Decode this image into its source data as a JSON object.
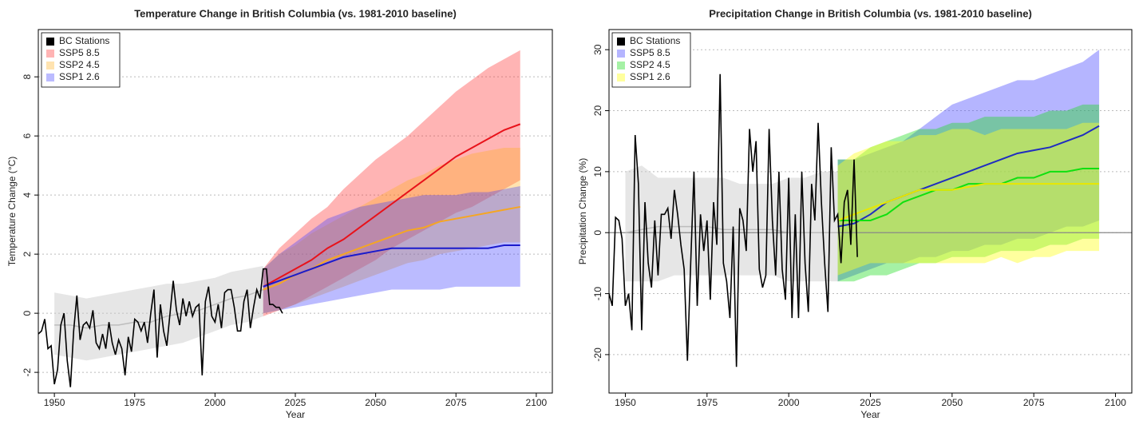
{
  "chart_data": [
    {
      "type": "line",
      "title": "Temperature Change in British Columbia (vs. 1981-2010 baseline)",
      "x_label": "Year",
      "y_label": "Temperature Change (°C)",
      "xlim": [
        1945,
        2105
      ],
      "xticks": [
        1950,
        1975,
        2000,
        2025,
        2050,
        2075,
        2100
      ],
      "ylim": [
        -2.7,
        9.6
      ],
      "yticks": [
        -2,
        0,
        2,
        4,
        6,
        8
      ],
      "grid": true,
      "legend": "top-left",
      "historical_range": {
        "color": "#bdbdbd",
        "x": [
          1950,
          1955,
          1960,
          1965,
          1970,
          1975,
          1980,
          1985,
          1990,
          1995,
          2000,
          2005,
          2010,
          2015
        ],
        "values": [
          -0.4,
          -0.4,
          -0.5,
          -0.4,
          -0.4,
          -0.3,
          -0.3,
          -0.1,
          0.0,
          0.1,
          0.3,
          0.5,
          0.6,
          0.8
        ],
        "lower": [
          -1.4,
          -1.5,
          -1.6,
          -1.5,
          -1.4,
          -1.3,
          -1.2,
          -1.1,
          -1.0,
          -0.8,
          -0.6,
          -0.4,
          -0.3,
          -0.1
        ],
        "upper": [
          0.7,
          0.6,
          0.5,
          0.6,
          0.7,
          0.8,
          0.9,
          1.0,
          1.0,
          1.1,
          1.2,
          1.4,
          1.5,
          1.6
        ]
      },
      "series": [
        {
          "name": "BC Stations",
          "color": "#000000",
          "x": [
            1945,
            1946,
            1947,
            1948,
            1949,
            1950,
            1951,
            1952,
            1953,
            1954,
            1955,
            1956,
            1957,
            1958,
            1959,
            1960,
            1961,
            1962,
            1963,
            1964,
            1965,
            1966,
            1967,
            1968,
            1969,
            1970,
            1971,
            1972,
            1973,
            1974,
            1975,
            1976,
            1977,
            1978,
            1979,
            1980,
            1981,
            1982,
            1983,
            1984,
            1985,
            1986,
            1987,
            1988,
            1989,
            1990,
            1991,
            1992,
            1993,
            1994,
            1995,
            1996,
            1997,
            1998,
            1999,
            2000,
            2001,
            2002,
            2003,
            2004,
            2005,
            2006,
            2007,
            2008,
            2009,
            2010,
            2011,
            2012,
            2013,
            2014,
            2015,
            2016,
            2017,
            2018,
            2019,
            2020,
            2021
          ],
          "values": [
            -0.7,
            -0.6,
            -0.2,
            -1.2,
            -1.1,
            -2.4,
            -1.9,
            -0.4,
            0.0,
            -1.6,
            -2.5,
            -0.6,
            0.6,
            -0.9,
            -0.4,
            -0.3,
            -0.5,
            0.1,
            -1.0,
            -1.2,
            -0.7,
            -1.2,
            -0.3,
            -1.0,
            -1.4,
            -0.9,
            -1.2,
            -2.1,
            -0.8,
            -1.3,
            -0.2,
            -0.3,
            -0.6,
            -0.3,
            -1.0,
            0.0,
            0.8,
            -1.5,
            0.3,
            -0.6,
            -1.1,
            0.0,
            1.1,
            0.1,
            -0.4,
            0.5,
            -0.1,
            0.4,
            -0.1,
            0.2,
            0.3,
            -2.1,
            0.4,
            0.9,
            -0.1,
            -0.3,
            0.3,
            -0.5,
            0.7,
            0.8,
            0.8,
            0.2,
            -0.6,
            -0.6,
            0.4,
            0.8,
            -0.5,
            0.2,
            0.8,
            0.5,
            1.5,
            1.5,
            0.3,
            0.3,
            0.2,
            0.2,
            0.0
          ]
        },
        {
          "name": "SSP5 8.5",
          "color": "#e8121a",
          "band_color": "rgba(255,40,40,0.35)",
          "x": [
            2015,
            2020,
            2025,
            2030,
            2035,
            2040,
            2045,
            2050,
            2055,
            2060,
            2065,
            2070,
            2075,
            2080,
            2085,
            2090,
            2095
          ],
          "values": [
            0.9,
            1.2,
            1.5,
            1.8,
            2.2,
            2.5,
            2.9,
            3.3,
            3.7,
            4.1,
            4.5,
            4.9,
            5.3,
            5.6,
            5.9,
            6.2,
            6.4
          ],
          "lower": [
            -0.1,
            0.1,
            0.3,
            0.6,
            0.9,
            1.2,
            1.5,
            1.8,
            2.2,
            2.5,
            2.8,
            3.1,
            3.4,
            3.6,
            3.9,
            4.2,
            4.5
          ],
          "upper": [
            1.5,
            2.2,
            2.7,
            3.2,
            3.6,
            4.2,
            4.7,
            5.2,
            5.6,
            6.0,
            6.5,
            7.0,
            7.5,
            7.9,
            8.3,
            8.6,
            8.9
          ]
        },
        {
          "name": "SSP2 4.5",
          "color": "#f5a623",
          "band_color": "rgba(255,175,30,0.35)",
          "x": [
            2015,
            2020,
            2025,
            2030,
            2035,
            2040,
            2045,
            2050,
            2055,
            2060,
            2065,
            2070,
            2075,
            2080,
            2085,
            2090,
            2095
          ],
          "values": [
            0.8,
            1.0,
            1.3,
            1.5,
            1.8,
            2.0,
            2.2,
            2.4,
            2.6,
            2.8,
            2.9,
            3.1,
            3.2,
            3.3,
            3.4,
            3.5,
            3.6
          ],
          "lower": [
            0.0,
            0.1,
            0.3,
            0.5,
            0.7,
            0.9,
            1.1,
            1.3,
            1.5,
            1.7,
            1.8,
            2.0,
            2.1,
            2.2,
            2.3,
            2.4,
            2.4
          ],
          "upper": [
            1.5,
            2.0,
            2.3,
            2.7,
            3.0,
            3.3,
            3.6,
            3.9,
            4.2,
            4.5,
            4.7,
            5.0,
            5.2,
            5.4,
            5.5,
            5.6,
            5.6
          ]
        },
        {
          "name": "SSP1 2.6",
          "color": "#1a1acc",
          "band_color": "rgba(60,60,255,0.35)",
          "x": [
            2015,
            2020,
            2025,
            2030,
            2035,
            2040,
            2045,
            2050,
            2055,
            2060,
            2065,
            2070,
            2075,
            2080,
            2085,
            2090,
            2095
          ],
          "values": [
            0.9,
            1.1,
            1.3,
            1.5,
            1.7,
            1.9,
            2.0,
            2.1,
            2.2,
            2.2,
            2.2,
            2.2,
            2.2,
            2.2,
            2.2,
            2.3,
            2.3
          ],
          "lower": [
            0.0,
            0.1,
            0.2,
            0.3,
            0.4,
            0.5,
            0.6,
            0.7,
            0.8,
            0.8,
            0.8,
            0.8,
            0.9,
            0.9,
            0.9,
            0.9,
            0.9
          ],
          "upper": [
            1.5,
            2.0,
            2.4,
            2.8,
            3.2,
            3.4,
            3.6,
            3.7,
            3.8,
            3.9,
            4.0,
            4.0,
            4.0,
            4.1,
            4.1,
            4.2,
            4.3
          ]
        }
      ]
    },
    {
      "type": "line",
      "title": "Precipitation Change in British Columbia (vs. 1981-2010 baseline)",
      "x_label": "Year",
      "y_label": "Precipitation Change (%)",
      "xlim": [
        1945,
        2105
      ],
      "xticks": [
        1950,
        1975,
        2000,
        2025,
        2050,
        2075,
        2100
      ],
      "ylim": [
        -26.3,
        33.3
      ],
      "yticks": [
        -20,
        -10,
        0,
        10,
        20,
        30
      ],
      "grid": true,
      "legend": "top-left",
      "reference_line": 0,
      "historical_range": {
        "color": "#bdbdbd",
        "x": [
          1950,
          1955,
          1960,
          1965,
          1970,
          1975,
          1980,
          1985,
          1990,
          1995,
          2000,
          2005,
          2010,
          2015
        ],
        "values": [
          0,
          0.5,
          1,
          1,
          1,
          1,
          0.5,
          0.5,
          0.5,
          0.5,
          0,
          0,
          0,
          0
        ],
        "lower": [
          -8,
          -8,
          -8,
          -7,
          -7,
          -7,
          -7,
          -7,
          -7,
          -7,
          -8,
          -8,
          -8,
          -8
        ],
        "upper": [
          10,
          11,
          9,
          9,
          9,
          9,
          9,
          8,
          8,
          8,
          9,
          9,
          10,
          10
        ]
      },
      "series": [
        {
          "name": "BC Stations",
          "color": "#000000",
          "x": [
            1945,
            1946,
            1947,
            1948,
            1949,
            1950,
            1951,
            1952,
            1953,
            1954,
            1955,
            1956,
            1957,
            1958,
            1959,
            1960,
            1961,
            1962,
            1963,
            1964,
            1965,
            1966,
            1967,
            1968,
            1969,
            1970,
            1971,
            1972,
            1973,
            1974,
            1975,
            1976,
            1977,
            1978,
            1979,
            1980,
            1981,
            1982,
            1983,
            1984,
            1985,
            1986,
            1987,
            1988,
            1989,
            1990,
            1991,
            1992,
            1993,
            1994,
            1995,
            1996,
            1997,
            1998,
            1999,
            2000,
            2001,
            2002,
            2003,
            2004,
            2005,
            2006,
            2007,
            2008,
            2009,
            2010,
            2011,
            2012,
            2013,
            2014,
            2015,
            2016,
            2017,
            2018,
            2019,
            2020,
            2021
          ],
          "values": [
            -10,
            -12,
            2.5,
            2,
            -1,
            -12,
            -10,
            -16,
            16,
            8,
            -16,
            5,
            -5,
            -9,
            2,
            -7,
            3,
            3,
            4,
            -1,
            7,
            3,
            -2,
            -6,
            -21,
            -5,
            10,
            -12,
            3,
            -3,
            2,
            -11,
            5,
            -2,
            26,
            -5,
            -8,
            -14,
            1,
            -22,
            4,
            2,
            -3,
            17,
            10,
            15,
            -6,
            -9,
            -7,
            17,
            2,
            -7,
            10,
            -6,
            -11,
            9,
            -14,
            3,
            -14,
            10,
            -5,
            -13,
            8,
            2,
            18,
            5,
            -5,
            -13,
            14,
            2,
            3,
            -5,
            5,
            7,
            -2,
            12,
            -4
          ]
        },
        {
          "name": "SSP5 8.5",
          "color": "#1f2dbf",
          "band_color": "rgba(70,70,255,0.4)",
          "x": [
            2015,
            2020,
            2025,
            2030,
            2035,
            2040,
            2045,
            2050,
            2055,
            2060,
            2065,
            2070,
            2075,
            2080,
            2085,
            2090,
            2095
          ],
          "values": [
            1,
            1.5,
            3,
            5,
            6,
            7,
            8,
            9,
            10,
            11,
            12,
            13,
            13.5,
            14,
            15,
            16,
            17.5
          ],
          "lower": [
            -8,
            -7,
            -6,
            -5,
            -5,
            -4,
            -4,
            -3,
            -3,
            -2,
            -2,
            -1,
            -1,
            0,
            1,
            1,
            2
          ],
          "upper": [
            12,
            12,
            13,
            14,
            15,
            17,
            19,
            21,
            22,
            23,
            24,
            25,
            25,
            26,
            27,
            28,
            30
          ]
        },
        {
          "name": "SSP2 4.5",
          "color": "#10e010",
          "band_color": "rgba(30,220,30,0.4)",
          "x": [
            2015,
            2020,
            2025,
            2030,
            2035,
            2040,
            2045,
            2050,
            2055,
            2060,
            2065,
            2070,
            2075,
            2080,
            2085,
            2090,
            2095
          ],
          "values": [
            2,
            2,
            2,
            3,
            5,
            6,
            7,
            7,
            8,
            8,
            8,
            9,
            9,
            10,
            10,
            10.5,
            10.5
          ],
          "lower": [
            -8,
            -8,
            -7,
            -7,
            -6,
            -5,
            -5,
            -4,
            -4,
            -4,
            -3,
            -3,
            -3,
            -2,
            -2,
            -1,
            -1
          ],
          "upper": [
            12,
            12,
            14,
            15,
            16,
            17,
            17,
            18,
            18,
            19,
            19,
            19,
            19,
            20,
            20,
            21,
            21
          ]
        },
        {
          "name": "SSP1 2.6",
          "color": "#e8e800",
          "band_color": "rgba(255,255,40,0.45)",
          "x": [
            2015,
            2020,
            2025,
            2030,
            2035,
            2040,
            2045,
            2050,
            2055,
            2060,
            2065,
            2070,
            2075,
            2080,
            2085,
            2090,
            2095
          ],
          "values": [
            2,
            3,
            4,
            5,
            6,
            7,
            7,
            7,
            7.5,
            8,
            8,
            8,
            8,
            8,
            8,
            8,
            8
          ],
          "lower": [
            -7,
            -6,
            -5,
            -5,
            -5,
            -5,
            -5,
            -5,
            -5,
            -5,
            -4,
            -5,
            -4,
            -4,
            -3,
            -3,
            -3
          ],
          "upper": [
            11,
            13,
            14,
            15,
            15,
            16,
            16,
            17,
            17,
            16,
            17,
            17,
            17,
            17,
            17,
            18,
            18
          ]
        }
      ]
    }
  ]
}
